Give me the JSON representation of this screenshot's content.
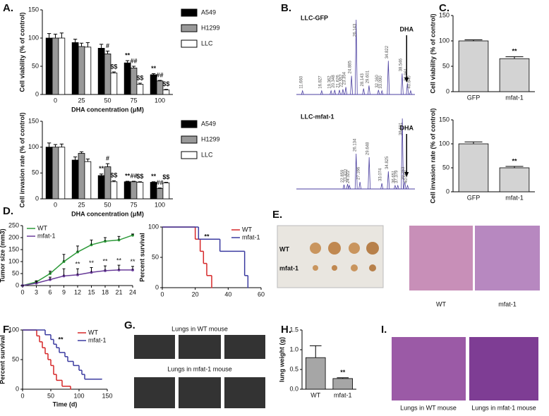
{
  "panel_labels": [
    "A.",
    "B.",
    "C.",
    "D.",
    "E.",
    "F.",
    "G.",
    "H.",
    "I."
  ],
  "images": {
    "E": {
      "row_labels": [
        "WT",
        "mfat-1"
      ],
      "captions": [
        "WT",
        "mfat-1"
      ]
    },
    "G": {
      "captions": [
        "Lungs in WT mouse",
        "Lungs in mfat-1 mouse"
      ]
    },
    "I": {
      "captions": [
        "Lungs in WT mouse",
        "Lungs in mfat-1 mouse"
      ]
    }
  },
  "chart_data": [
    {
      "type": "bar",
      "ylabel": "Cell viability (% of control)",
      "xlabel": "DHA concentration (μM)",
      "categories": [
        "0",
        "25",
        "50",
        "75",
        "100"
      ],
      "ylim": [
        0,
        150
      ],
      "yticks": [
        0,
        50,
        100,
        150
      ],
      "legend": "right",
      "series": [
        {
          "name": "A549",
          "color": "#000000",
          "values": [
            100,
            92,
            82,
            56,
            35
          ],
          "errors": [
            8,
            6,
            7,
            4,
            2
          ],
          "annotations": [
            null,
            null,
            null,
            "**",
            "**"
          ]
        },
        {
          "name": "H1299",
          "color": "#999999",
          "values": [
            100,
            85,
            72,
            47,
            24
          ],
          "errors": [
            7,
            6,
            5,
            3,
            1
          ],
          "annotations": [
            null,
            null,
            "#",
            "##",
            "##"
          ]
        },
        {
          "name": "LLC",
          "color": "#ffffff",
          "values": [
            100,
            84,
            38,
            18,
            8
          ],
          "errors": [
            9,
            8,
            2,
            2,
            1
          ],
          "annotations": [
            null,
            null,
            "$$",
            "$$",
            "$$"
          ]
        }
      ]
    },
    {
      "type": "bar",
      "ylabel": "Cell invasion rate (% of control)",
      "xlabel": "DHA concentration (μM)",
      "categories": [
        "0",
        "25",
        "50",
        "75",
        "100"
      ],
      "ylim": [
        0,
        150
      ],
      "yticks": [
        0,
        50,
        100,
        150
      ],
      "legend": "right",
      "series": [
        {
          "name": "A549",
          "color": "#000000",
          "values": [
            100,
            75,
            45,
            33,
            32
          ],
          "errors": [
            8,
            6,
            3,
            1,
            1
          ],
          "annotations": [
            null,
            null,
            "**",
            "**",
            "**"
          ]
        },
        {
          "name": "H1299",
          "color": "#999999",
          "values": [
            100,
            88,
            62,
            33,
            20
          ],
          "errors": [
            5,
            3,
            6,
            1,
            1
          ],
          "annotations": [
            null,
            null,
            "#",
            "##",
            "##"
          ]
        },
        {
          "name": "LLC",
          "color": "#ffffff",
          "values": [
            100,
            72,
            33,
            32,
            31
          ],
          "errors": [
            6,
            5,
            2,
            1,
            1
          ],
          "annotations": [
            null,
            null,
            "$$",
            "$$",
            "$$"
          ]
        }
      ]
    },
    {
      "type": "chromatogram",
      "title": "LLC-GFP",
      "annotation": "DHA",
      "color": "#4b3fa0",
      "xlim": [
        10,
        42
      ],
      "x": [
        11.66,
        16.827,
        19.362,
        20.348,
        21.626,
        22.557,
        23.354,
        24.885,
        26.143,
        28.143,
        29.601,
        32.16,
        33.09,
        34.822,
        38.546,
        39.961,
        40.84
      ],
      "x_labels": [
        "11.660",
        "16.827",
        "19.362",
        "20.348",
        "21.626",
        "22.557",
        "23.354",
        "24.885",
        "26.143",
        "28.143",
        "29.601",
        "32.160",
        "33.090",
        "34.822",
        "38.546",
        "39.961",
        "40.840"
      ],
      "values": [
        0.05,
        0.05,
        0.05,
        0.06,
        0.06,
        0.07,
        0.1,
        0.25,
        1.0,
        0.08,
        0.12,
        0.06,
        0.05,
        0.45,
        0.28,
        0.15,
        0.05
      ]
    },
    {
      "type": "chromatogram",
      "title": "LLC-mfat-1",
      "annotation": "DHA",
      "color": "#4b3fa0",
      "xlim": [
        10,
        42
      ],
      "x": [
        22.859,
        23.822,
        24.322,
        26.134,
        27.166,
        29.648,
        33.074,
        34.825,
        36.651,
        37.379,
        38.601,
        39.253,
        40.009
      ],
      "x_labels": [
        "22.859",
        "23.822",
        "24.322",
        "26.134",
        "27.166",
        "29.648",
        "33.074",
        "34.825",
        "36.651",
        "37.379",
        "38.601",
        "39.253",
        "40.009"
      ],
      "values": [
        0.06,
        0.07,
        0.05,
        0.5,
        0.1,
        0.45,
        0.08,
        0.25,
        0.05,
        0.05,
        1.0,
        0.1,
        0.05
      ]
    },
    {
      "type": "bar",
      "ylabel": "Cell viability (% of control)",
      "categories": [
        "GFP",
        "mfat-1"
      ],
      "values": [
        100,
        65
      ],
      "errors": [
        2,
        4
      ],
      "annotations": [
        null,
        "**"
      ],
      "color": "#d3d3d3",
      "ylim": [
        0,
        150
      ],
      "yticks": [
        0,
        50,
        100,
        150
      ]
    },
    {
      "type": "bar",
      "ylabel": "Cell invasion rate (% of control)",
      "categories": [
        "GFP",
        "mfat-1"
      ],
      "values": [
        100,
        50
      ],
      "errors": [
        4,
        3
      ],
      "annotations": [
        null,
        "**"
      ],
      "color": "#d3d3d3",
      "ylim": [
        0,
        150
      ],
      "yticks": [
        0,
        50,
        100,
        150
      ]
    },
    {
      "type": "line",
      "ylabel": "Tumor size (mm3)",
      "legend": "upper left",
      "x": [
        0,
        3,
        6,
        9,
        12,
        15,
        18,
        21,
        24
      ],
      "xlim": [
        0,
        24
      ],
      "xticks": [
        0,
        3,
        6,
        9,
        12,
        15,
        18,
        21,
        24
      ],
      "ylim": [
        0,
        250
      ],
      "yticks": [
        0,
        50,
        100,
        150,
        200,
        250
      ],
      "series": [
        {
          "name": "WT",
          "color": "#2e9a3a",
          "values": [
            0,
            15,
            50,
            100,
            140,
            170,
            185,
            190,
            210
          ],
          "errors": [
            0,
            5,
            10,
            30,
            25,
            20,
            15,
            15,
            5
          ]
        },
        {
          "name": "mfat-1",
          "color": "#6a3d9a",
          "values": [
            0,
            10,
            25,
            40,
            45,
            55,
            62,
            65,
            65
          ],
          "errors": [
            0,
            5,
            10,
            30,
            25,
            20,
            20,
            20,
            15
          ],
          "annotations": [
            null,
            null,
            null,
            null,
            "**",
            "**",
            "**",
            "**",
            "**"
          ]
        }
      ]
    },
    {
      "type": "step",
      "ylabel": "Percent survival",
      "annotation": "**",
      "legend": "upper right",
      "xlim": [
        0,
        60
      ],
      "xticks": [
        0,
        20,
        40,
        60
      ],
      "ylim": [
        0,
        100
      ],
      "yticks": [
        0,
        50,
        100
      ],
      "series": [
        {
          "name": "WT",
          "color": "#d62728",
          "x": [
            0,
            20,
            23,
            25,
            27,
            30
          ],
          "values": [
            100,
            80,
            60,
            40,
            20,
            0
          ]
        },
        {
          "name": "mfat-1",
          "color": "#3b3ba0",
          "x": [
            0,
            22,
            35,
            50,
            52
          ],
          "values": [
            100,
            80,
            60,
            20,
            0
          ]
        }
      ]
    },
    {
      "type": "step",
      "ylabel": "Percent survival",
      "xlabel": "Time (d)",
      "annotation": "**",
      "legend": "upper right",
      "xlim": [
        0,
        150
      ],
      "xticks": [
        0,
        50,
        100,
        150
      ],
      "ylim": [
        0,
        100
      ],
      "yticks": [
        0,
        50,
        100
      ],
      "series": [
        {
          "name": "WT",
          "color": "#d62728",
          "x": [
            0,
            25,
            30,
            35,
            40,
            45,
            50,
            55,
            60,
            70,
            85
          ],
          "values": [
            100,
            90,
            80,
            70,
            60,
            50,
            40,
            25,
            15,
            5,
            0
          ]
        },
        {
          "name": "mfat-1",
          "color": "#3b3ba0",
          "x": [
            0,
            40,
            50,
            55,
            60,
            65,
            75,
            80,
            90,
            100,
            105,
            110,
            140
          ],
          "values": [
            100,
            92,
            84,
            76,
            70,
            62,
            55,
            47,
            40,
            32,
            25,
            17,
            17
          ]
        }
      ]
    },
    {
      "type": "bar",
      "ylabel": "lung weight (g)",
      "categories": [
        "WT",
        "mfat-1"
      ],
      "values": [
        0.8,
        0.27
      ],
      "errors": [
        0.3,
        0.02
      ],
      "annotations": [
        null,
        "**"
      ],
      "color": "#a6a6a6",
      "ylim": [
        0,
        1.5
      ],
      "yticks": [
        {
          "value": 0,
          "label": "0.0"
        },
        {
          "value": 0.5,
          "label": "0.5"
        },
        {
          "value": 1,
          "label": "1.0"
        },
        {
          "value": 1.5,
          "label": "1.5"
        }
      ]
    }
  ]
}
